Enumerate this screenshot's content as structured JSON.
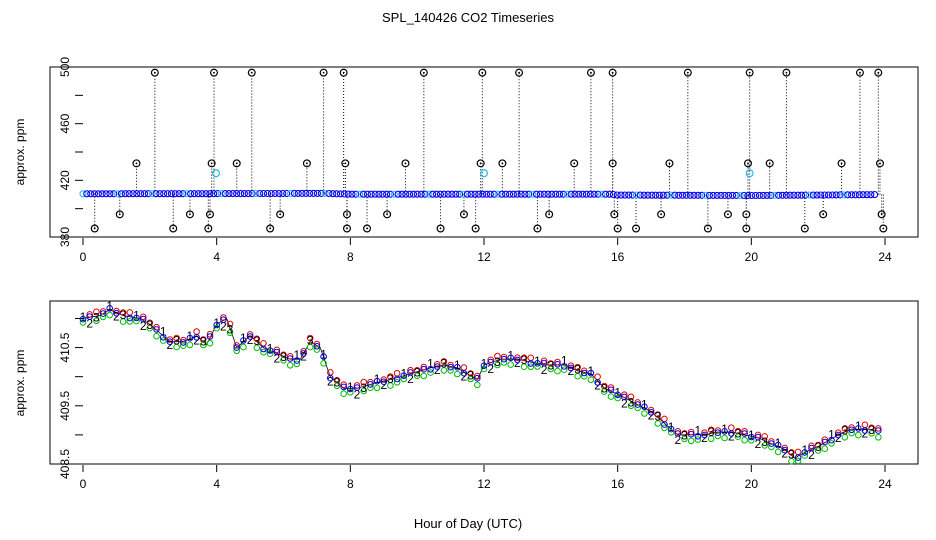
{
  "figure": {
    "title": "SPL_140426  CO2 Timeseries",
    "xlabel": "Hour of Day (UTC)"
  },
  "colors": {
    "ring": "#000000",
    "main": "#0000ee",
    "alt": "#22bbee",
    "series1": "#dd0000",
    "series2": "#00bb00",
    "series3": "#0000ee"
  },
  "chart_data": [
    {
      "type": "scatter",
      "name": "top-panel",
      "ylabel": "approx. ppm",
      "xlim": [
        0,
        24
      ],
      "ylim": [
        380,
        500
      ],
      "xticks": [
        "0",
        "4",
        "8",
        "12",
        "16",
        "20",
        "24"
      ],
      "yticks": [
        "380",
        "420",
        "460",
        "500"
      ],
      "baseline": [
        [
          0,
          410.5
        ],
        [
          4,
          410.6
        ],
        [
          7.2,
          410.8
        ],
        [
          8,
          410.2
        ],
        [
          12,
          410.2
        ],
        [
          15.8,
          410.2
        ],
        [
          16,
          409.6
        ],
        [
          20,
          409.3
        ],
        [
          22,
          409.6
        ],
        [
          23.7,
          409.9
        ]
      ],
      "alt_points": [
        [
          3.98,
          425
        ],
        [
          12.0,
          425
        ],
        [
          19.95,
          425
        ]
      ],
      "high_points": [
        [
          2.15,
          496
        ],
        [
          3.92,
          496
        ],
        [
          5.05,
          496
        ],
        [
          7.2,
          496
        ],
        [
          7.8,
          496
        ],
        [
          10.2,
          496
        ],
        [
          11.95,
          496
        ],
        [
          13.05,
          496
        ],
        [
          15.2,
          496
        ],
        [
          15.85,
          496
        ],
        [
          18.1,
          496
        ],
        [
          19.95,
          496
        ],
        [
          21.05,
          496
        ],
        [
          23.25,
          496
        ],
        [
          23.8,
          496
        ]
      ],
      "mid_points": [
        [
          1.6,
          432
        ],
        [
          3.85,
          432
        ],
        [
          4.6,
          432
        ],
        [
          6.7,
          432
        ],
        [
          7.85,
          432
        ],
        [
          9.65,
          432
        ],
        [
          11.9,
          432
        ],
        [
          12.55,
          432
        ],
        [
          14.7,
          432
        ],
        [
          15.85,
          432
        ],
        [
          17.55,
          432
        ],
        [
          19.9,
          432
        ],
        [
          20.55,
          432
        ],
        [
          22.7,
          432
        ],
        [
          23.85,
          432
        ]
      ],
      "low1_points": [
        [
          1.1,
          396
        ],
        [
          3.2,
          396
        ],
        [
          3.8,
          396
        ],
        [
          5.9,
          396
        ],
        [
          7.9,
          396
        ],
        [
          9.1,
          396
        ],
        [
          11.4,
          396
        ],
        [
          13.95,
          396
        ],
        [
          15.9,
          396
        ],
        [
          17.3,
          396
        ],
        [
          19.3,
          396
        ],
        [
          19.85,
          396
        ],
        [
          22.15,
          396
        ],
        [
          23.9,
          396
        ]
      ],
      "low2_points": [
        [
          0.35,
          386
        ],
        [
          2.7,
          386
        ],
        [
          3.75,
          386
        ],
        [
          5.6,
          386
        ],
        [
          7.9,
          386
        ],
        [
          8.5,
          386
        ],
        [
          10.7,
          386
        ],
        [
          11.75,
          386
        ],
        [
          13.6,
          386
        ],
        [
          16.0,
          386
        ],
        [
          16.55,
          386
        ],
        [
          18.7,
          386
        ],
        [
          19.85,
          386
        ],
        [
          21.6,
          386
        ],
        [
          23.95,
          386
        ]
      ]
    },
    {
      "type": "line",
      "name": "bottom-panel",
      "ylabel": "approx. ppm",
      "xlim": [
        0,
        24
      ],
      "ylim": [
        408.5,
        411.3
      ],
      "xticks": [
        "0",
        "4",
        "8",
        "12",
        "16",
        "20",
        "24"
      ],
      "yticks": [
        "408.5",
        "409.5",
        "410.5"
      ],
      "series": [
        {
          "name": "1",
          "marker": "1",
          "offset": 0.05
        },
        {
          "name": "2",
          "marker": "2",
          "offset": -0.08
        },
        {
          "name": "3",
          "marker": "3",
          "offset": 0.0
        }
      ],
      "points": [
        [
          0,
          411.0
        ],
        [
          0.5,
          411.05
        ],
        [
          0.8,
          411.15
        ],
        [
          1.2,
          411.05
        ],
        [
          1.7,
          411.0
        ],
        [
          2.0,
          410.9
        ],
        [
          2.6,
          410.6
        ],
        [
          3.0,
          410.6
        ],
        [
          3.4,
          410.7
        ],
        [
          3.7,
          410.55
        ],
        [
          4.0,
          410.9
        ],
        [
          4.3,
          411.0
        ],
        [
          4.6,
          410.5
        ],
        [
          5.0,
          410.7
        ],
        [
          5.4,
          410.5
        ],
        [
          5.8,
          410.4
        ],
        [
          6.2,
          410.3
        ],
        [
          6.5,
          410.3
        ],
        [
          6.8,
          410.6
        ],
        [
          7.1,
          410.5
        ],
        [
          7.4,
          410.0
        ],
        [
          7.8,
          409.8
        ],
        [
          8.2,
          409.8
        ],
        [
          8.8,
          409.9
        ],
        [
          9.2,
          409.95
        ],
        [
          9.8,
          410.05
        ],
        [
          10.4,
          410.15
        ],
        [
          10.8,
          410.2
        ],
        [
          11.2,
          410.15
        ],
        [
          11.5,
          410.05
        ],
        [
          11.8,
          409.95
        ],
        [
          12.0,
          410.2
        ],
        [
          12.5,
          410.3
        ],
        [
          13.0,
          410.3
        ],
        [
          13.4,
          410.25
        ],
        [
          13.9,
          410.2
        ],
        [
          14.4,
          410.2
        ],
        [
          14.8,
          410.1
        ],
        [
          15.2,
          410.05
        ],
        [
          15.6,
          409.8
        ],
        [
          16.0,
          409.7
        ],
        [
          16.5,
          409.55
        ],
        [
          17.0,
          409.4
        ],
        [
          17.4,
          409.2
        ],
        [
          17.8,
          409.0
        ],
        [
          18.2,
          409.0
        ],
        [
          18.6,
          409.0
        ],
        [
          19.0,
          409.05
        ],
        [
          19.4,
          409.05
        ],
        [
          19.8,
          409.0
        ],
        [
          20.2,
          408.95
        ],
        [
          20.6,
          408.85
        ],
        [
          21.0,
          408.75
        ],
        [
          21.3,
          408.6
        ],
        [
          21.6,
          408.7
        ],
        [
          22.0,
          408.8
        ],
        [
          22.6,
          409.0
        ],
        [
          23.0,
          409.1
        ],
        [
          23.5,
          409.1
        ],
        [
          23.8,
          409.05
        ]
      ]
    }
  ]
}
